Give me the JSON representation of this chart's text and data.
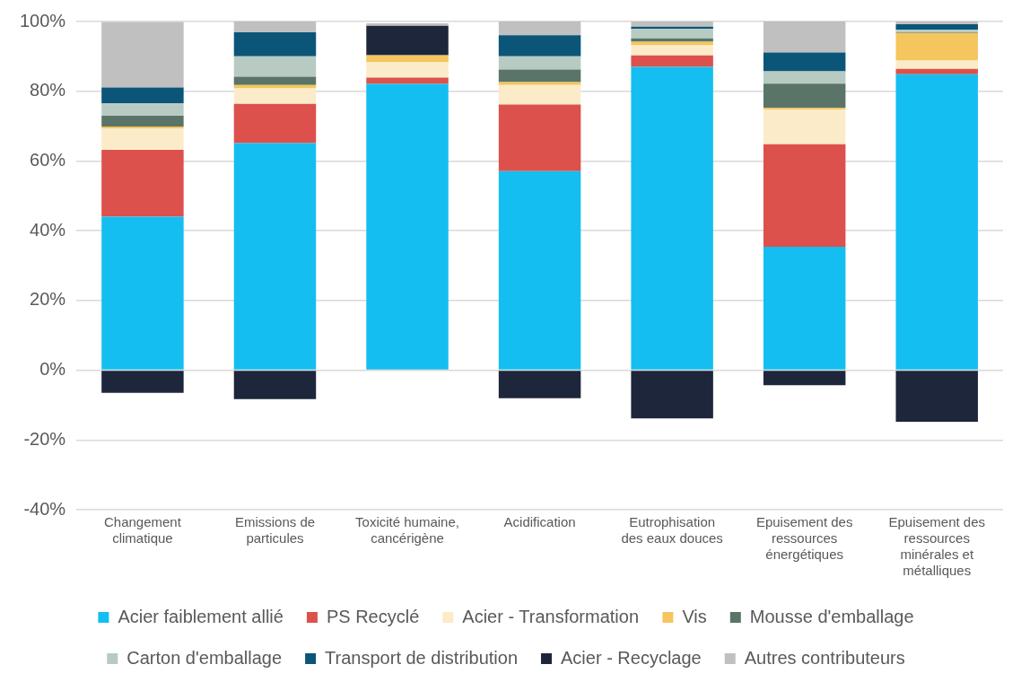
{
  "chart_data": {
    "type": "bar",
    "stacked": true,
    "categories": [
      "Changement climatique",
      "Emissions de particules",
      "Toxicité humaine, cancérigène",
      "Acidification",
      "Eutrophisation des eaux douces",
      "Epuisement des ressources énergétiques",
      "Epuisement des ressources minérales et métalliques"
    ],
    "series": [
      {
        "name": "Acier faiblement allié",
        "color": "#15bef0",
        "values": [
          44.0,
          65.1,
          82.1,
          57.1,
          87.0,
          35.4,
          84.9
        ]
      },
      {
        "name": "PS Recyclé",
        "color": "#dc514c",
        "values": [
          19.2,
          11.3,
          1.8,
          19.1,
          3.3,
          29.4,
          1.5
        ]
      },
      {
        "name": "Acier - Transformation",
        "color": "#fcebc9",
        "values": [
          6.1,
          4.4,
          4.5,
          5.6,
          2.9,
          9.9,
          2.4
        ]
      },
      {
        "name": "Vis",
        "color": "#f5c55e",
        "values": [
          0.6,
          1.0,
          1.9,
          0.8,
          1.0,
          0.5,
          7.9
        ]
      },
      {
        "name": "Mousse d'emballage",
        "color": "#5a7567",
        "values": [
          3.1,
          2.4,
          0.2,
          3.6,
          1.0,
          7.0,
          0.2
        ]
      },
      {
        "name": "Carton d'emballage",
        "color": "#b8cbc3",
        "values": [
          3.5,
          5.8,
          null,
          3.8,
          2.7,
          3.5,
          0.7
        ]
      },
      {
        "name": "Transport de distribution",
        "color": "#0b5678",
        "values": [
          4.6,
          6.9,
          null,
          6.1,
          0.6,
          5.4,
          1.6
        ]
      },
      {
        "name": "Acier - Recyclage",
        "color": "#1e263b",
        "values": [
          -6.5,
          -8.3,
          8.3,
          -8.0,
          -13.8,
          -4.3,
          -14.8
        ]
      },
      {
        "name": "Autres contributeurs",
        "color": "#c0c0c0",
        "values": [
          18.8,
          3.1,
          0.7,
          3.9,
          1.5,
          8.9,
          0.8
        ]
      }
    ],
    "ylim": [
      -40,
      100
    ],
    "yticks": [
      {
        "value": -40,
        "label": "-40%"
      },
      {
        "value": -20,
        "label": "-20%"
      },
      {
        "value": 0,
        "label": "0%"
      },
      {
        "value": 20,
        "label": "20%"
      },
      {
        "value": 40,
        "label": "40%"
      },
      {
        "value": 60,
        "label": "60%"
      },
      {
        "value": 80,
        "label": "80%"
      },
      {
        "value": 100,
        "label": "100%"
      }
    ],
    "grid": "y",
    "legend": "bottom"
  }
}
